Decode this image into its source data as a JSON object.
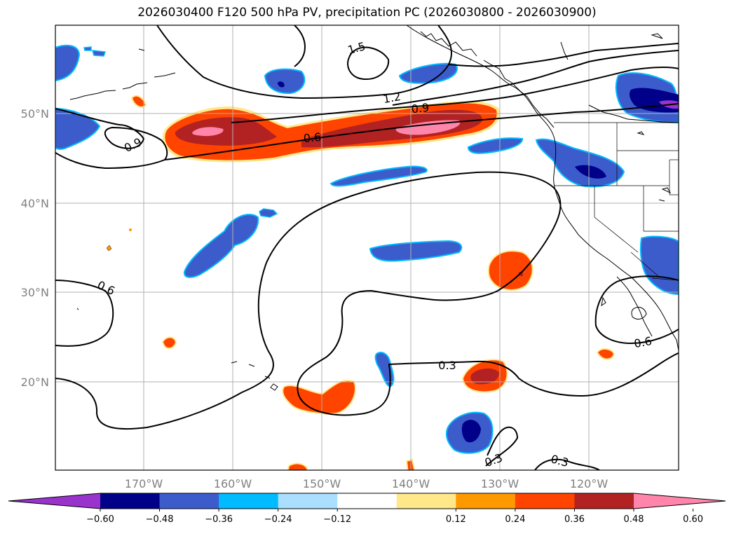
{
  "title": "2026030400 F120 500 hPa PV, precipitation PC (2026030800 - 2026030900)",
  "map": {
    "lat_labels": [
      "50°N",
      "40°N",
      "30°N",
      "20°N"
    ],
    "lon_labels": [
      "170°W",
      "160°W",
      "150°W",
      "140°W",
      "130°W",
      "120°W"
    ],
    "contour_labels": [
      "1.5",
      "1.2",
      "0.9",
      "0.6",
      "0.9",
      "0.6",
      "0.6",
      "0.3",
      "0.3",
      "0.3"
    ]
  },
  "colorbar": {
    "tick_labels": [
      "−0.60",
      "−0.48",
      "−0.36",
      "−0.24",
      "−0.12",
      "0.12",
      "0.24",
      "0.36",
      "0.48",
      "0.60"
    ],
    "colors": [
      "#9933cc",
      "#000088",
      "#3c5ccc",
      "#00bbff",
      "#aadfff",
      "#ffffff",
      "#ffe88a",
      "#ff9900",
      "#ff4400",
      "#b22222",
      "#ff85aa"
    ]
  },
  "colors": {
    "pink": "#ff85aa",
    "darkred": "#b22222",
    "orange": "#ff4400",
    "amber": "#ff9900",
    "yellow": "#ffe88a",
    "royal": "#3c5ccc",
    "navy": "#000088",
    "cyan": "#00bbff",
    "lightblue": "#aadfff",
    "purple": "#9933cc"
  }
}
